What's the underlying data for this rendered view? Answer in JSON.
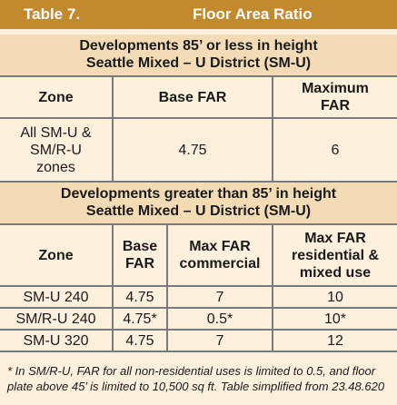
{
  "title": {
    "number": "Table 7.",
    "name": "Floor Area Ratio"
  },
  "section1": {
    "heading_line1": "Developments 85’ or less in height",
    "heading_line2": "Seattle Mixed – U District (SM-U)",
    "headers": [
      "Zone",
      "Base FAR",
      "Maximum FAR"
    ],
    "row": {
      "zone": "All SM-U & SM/R-U zones",
      "base": "4.75",
      "max": "6"
    }
  },
  "section2": {
    "heading_line1": "Developments greater than 85’ in height",
    "heading_line2": "Seattle Mixed – U District (SM-U)",
    "headers": [
      "Zone",
      "Base FAR",
      "Max FAR commercial",
      "Max FAR residential & mixed use"
    ],
    "rows": [
      {
        "zone": "SM-U 240",
        "base": "4.75",
        "commercial": "7",
        "residential": "10"
      },
      {
        "zone": "SM/R-U 240",
        "base": "4.75*",
        "commercial": "0.5*",
        "residential": "10*"
      },
      {
        "zone": "SM-U 320",
        "base": "4.75",
        "commercial": "7",
        "residential": "12"
      }
    ]
  },
  "footnote": "* In SM/R-U, FAR for all non-residential uses is limited to 0.5, and floor plate above 45’ is limited to 10,500 sq ft. Table simplified from 23.48.620",
  "colors": {
    "title_bar": "#c28a2c",
    "section_head": "#f3dcb5",
    "body_bg": "#fdf0dc",
    "rules": "#7a7a7a"
  }
}
